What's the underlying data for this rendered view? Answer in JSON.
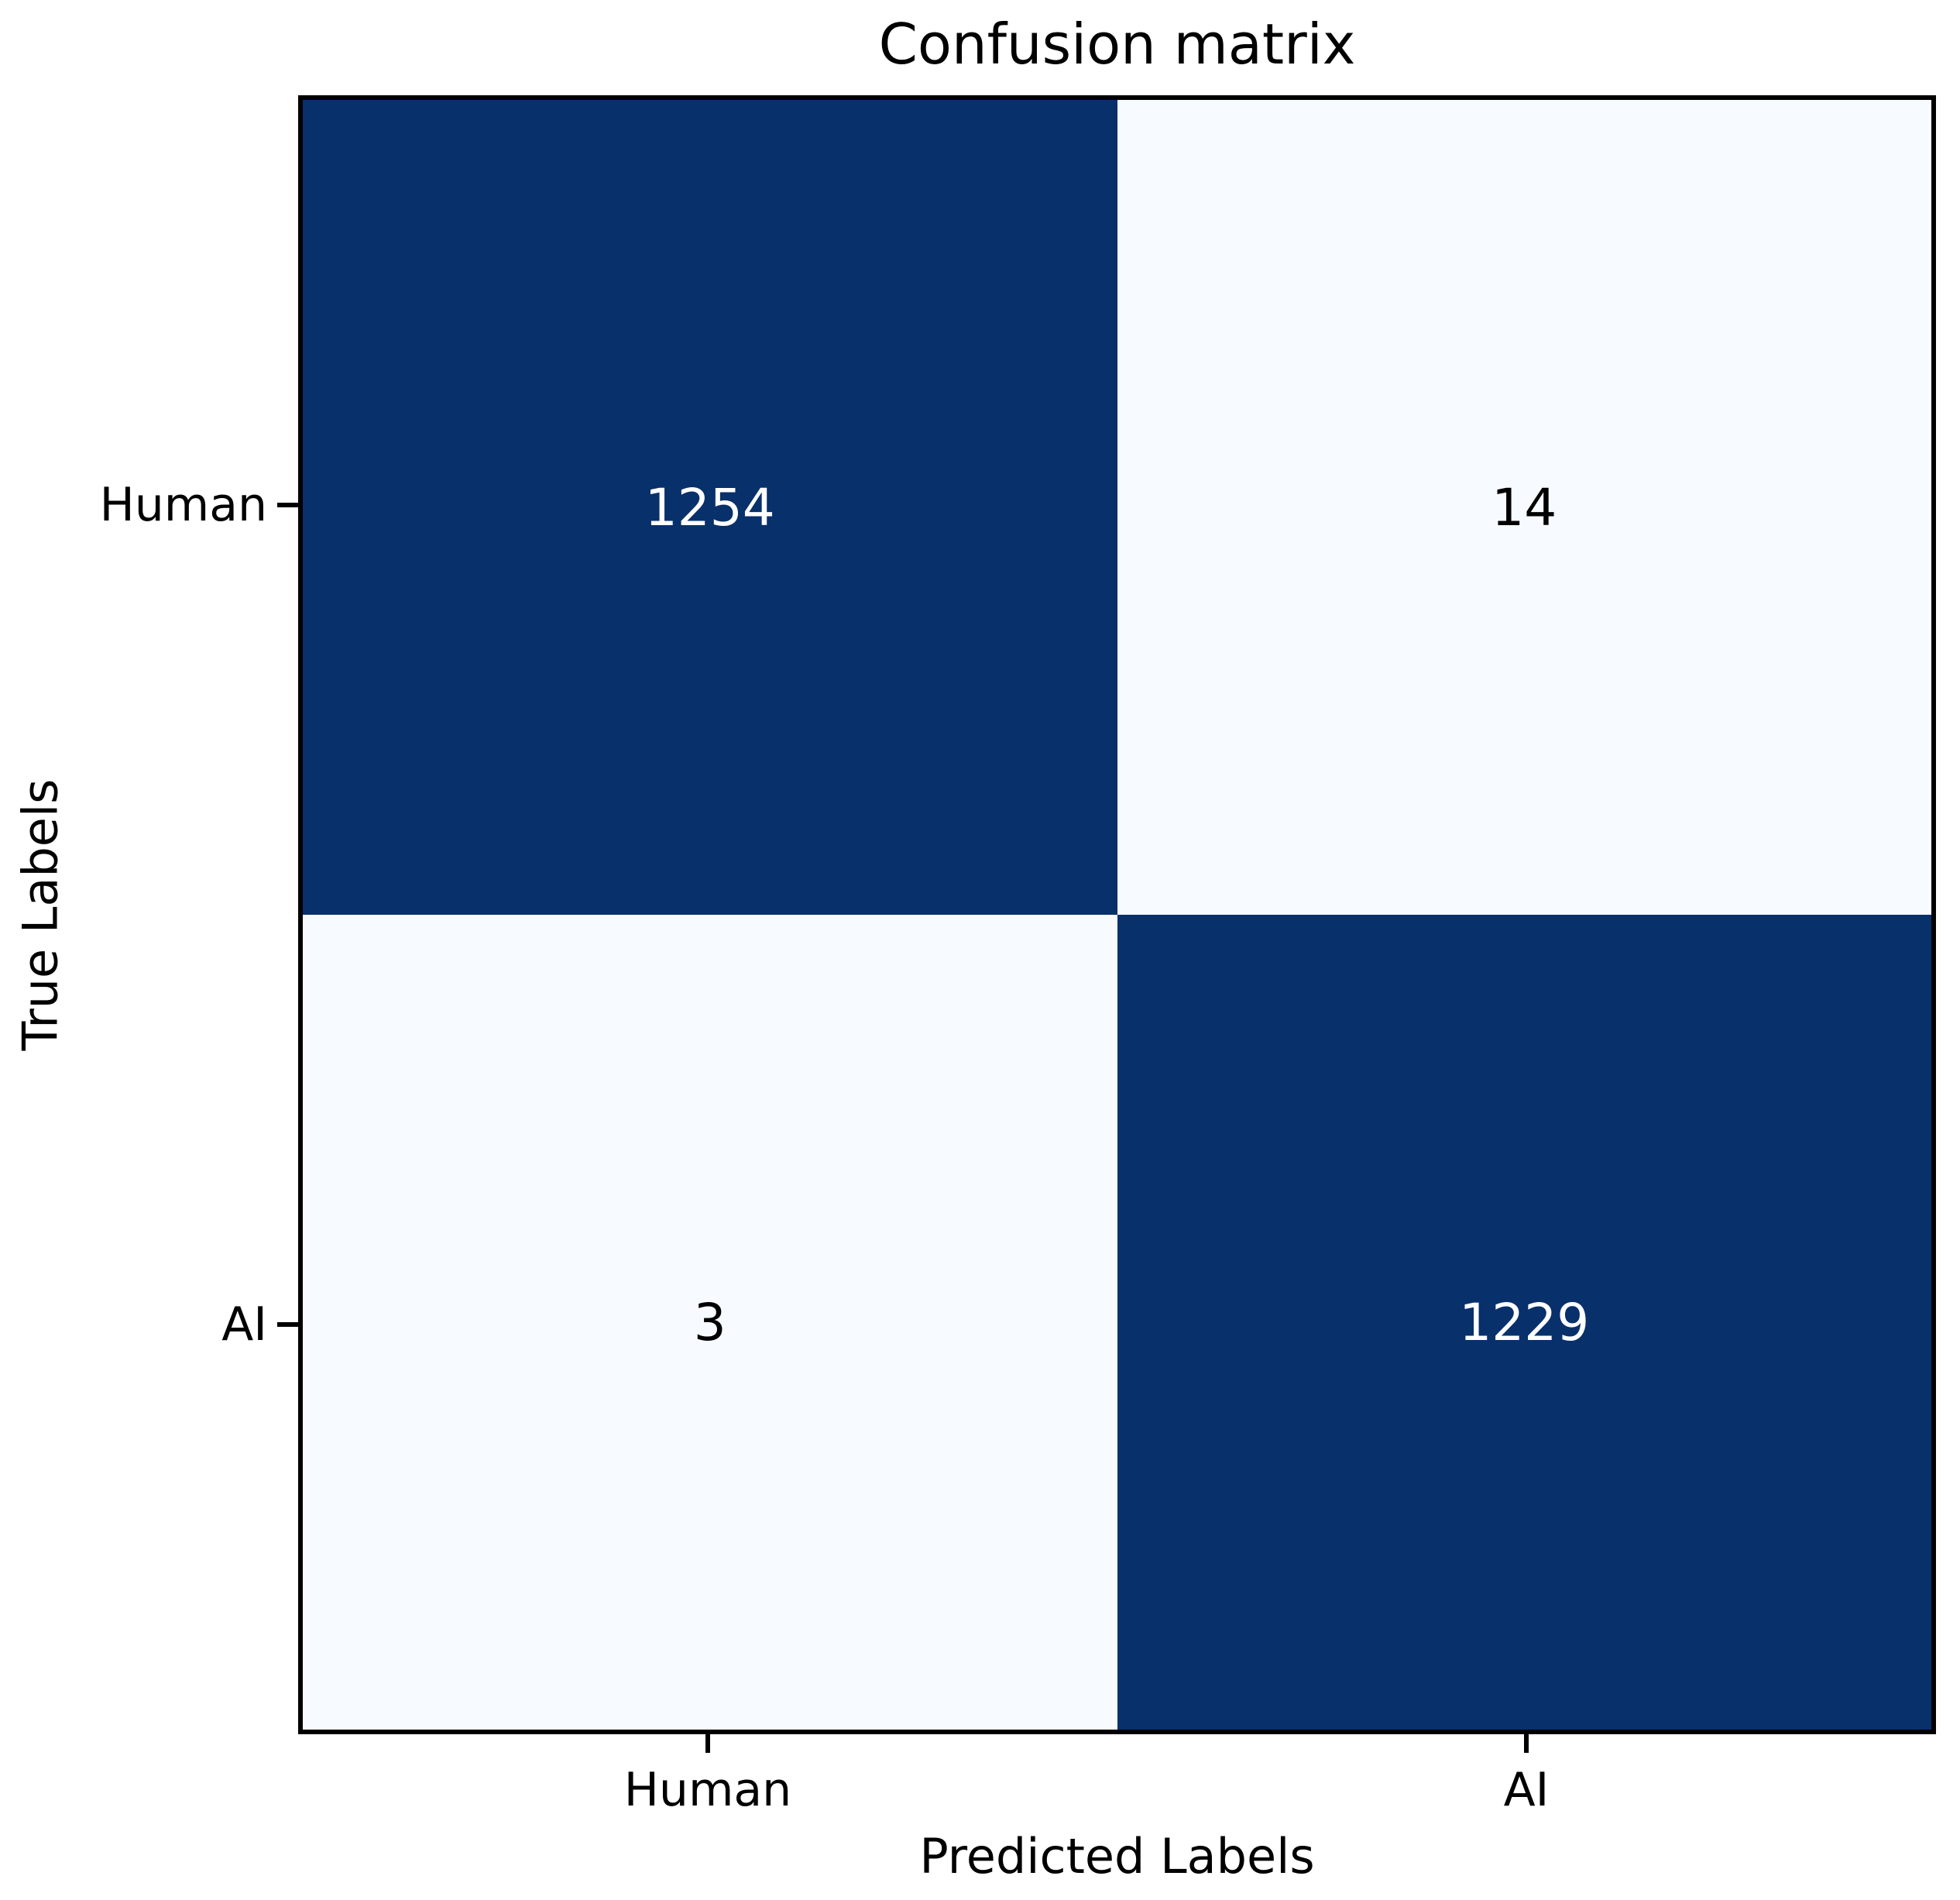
{
  "figure": {
    "background": "#ffffff"
  },
  "chart_data": {
    "type": "heatmap",
    "title": "Confusion matrix",
    "xlabel": "Predicted Labels",
    "ylabel": "True Labels",
    "row_labels": [
      "Human",
      "AI"
    ],
    "col_labels": [
      "Human",
      "AI"
    ],
    "matrix": [
      [
        1254,
        14
      ],
      [
        3,
        1229
      ]
    ],
    "grid": false,
    "legend": "none",
    "colors": {
      "dark_cell": "#08306b",
      "light_cell": "#f7fbff",
      "text_on_dark": "#ffffff",
      "text_on_light": "#000000",
      "spine": "#000000",
      "background": "#ffffff"
    },
    "cells": [
      {
        "true_label": "Human",
        "predicted_label": "Human",
        "value": "1254",
        "bg": "#08306b",
        "fg": "#ffffff"
      },
      {
        "true_label": "Human",
        "predicted_label": "AI",
        "value": "14",
        "bg": "#f7fbff",
        "fg": "#000000"
      },
      {
        "true_label": "AI",
        "predicted_label": "Human",
        "value": "3",
        "bg": "#f7fbff",
        "fg": "#000000"
      },
      {
        "true_label": "AI",
        "predicted_label": "AI",
        "value": "1229",
        "bg": "#08306b",
        "fg": "#ffffff"
      }
    ]
  }
}
